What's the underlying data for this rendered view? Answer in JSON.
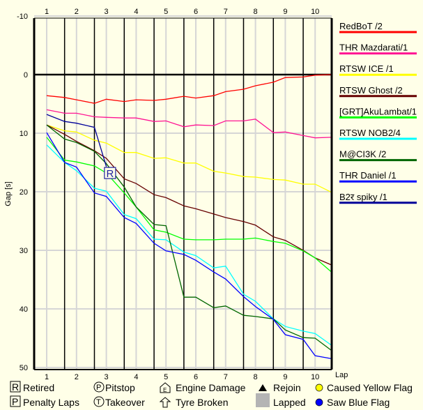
{
  "chart_data": {
    "type": "line",
    "title": "",
    "xlabel": "Lap",
    "ylabel": "Gap [s]",
    "xlim": [
      0.55,
      10.55
    ],
    "ylim": [
      -10,
      50
    ],
    "y_inverted": true,
    "x_ticks": [
      "1",
      "2",
      "3",
      "4",
      "5",
      "6",
      "7",
      "8",
      "9",
      "10"
    ],
    "y_ticks": [
      "-10",
      "0",
      "10",
      "20",
      "30",
      "40",
      "50"
    ],
    "y_tick_values": [
      -10,
      0,
      10,
      20,
      30,
      40,
      50
    ],
    "sector_boundaries": [
      1.6,
      2.6,
      3.6,
      4.6,
      5.6,
      6.6,
      7.6,
      8.6,
      9.6
    ],
    "x": [
      1,
      1.6,
      2,
      2.6,
      3,
      3.6,
      4,
      4.6,
      5,
      5.6,
      6,
      6.6,
      7,
      7.6,
      8,
      8.6,
      9,
      9.6,
      10,
      10.55
    ],
    "grid": true,
    "legend_position": "right",
    "series": [
      {
        "name": "RedBoT /2",
        "color": "#ff0000",
        "values": [
          3.6,
          3.9,
          4.3,
          4.9,
          4.2,
          4.6,
          4.3,
          4.4,
          4.2,
          3.7,
          4.0,
          3.6,
          2.9,
          2.5,
          1.9,
          1.3,
          0.5,
          0.4,
          0.1,
          0.0
        ]
      },
      {
        "name": "THR Mazdarati/1",
        "color": "#ff1493",
        "values": [
          6.0,
          6.6,
          6.6,
          7.2,
          7.3,
          7.4,
          7.4,
          8.0,
          7.9,
          8.9,
          8.6,
          8.7,
          7.9,
          7.9,
          7.6,
          9.9,
          9.8,
          10.4,
          10.8,
          10.7
        ]
      },
      {
        "name": "RTSW ICE /1",
        "color": "#ffff00",
        "values": [
          8.6,
          9.6,
          9.8,
          11.2,
          11.7,
          13.3,
          13.3,
          14.3,
          14.2,
          15.1,
          15.1,
          16.5,
          16.8,
          17.4,
          17.5,
          17.9,
          18.0,
          18.7,
          18.7,
          20.1
        ]
      },
      {
        "name": "RTSW Ghost /2",
        "color": "#660000",
        "values": [
          8.6,
          10.2,
          11.4,
          13.0,
          14.3,
          17.8,
          18.6,
          20.5,
          21.0,
          22.4,
          22.9,
          23.8,
          24.4,
          25.1,
          25.7,
          27.7,
          28.3,
          30.0,
          31.3,
          32.5
        ]
      },
      {
        "name": "[GRT]AkuLambat/1",
        "color": "#00ff00",
        "values": [
          10.7,
          14.6,
          14.9,
          15.6,
          16.8,
          20.2,
          22.6,
          26.5,
          26.9,
          28.1,
          28.2,
          28.2,
          28.1,
          28.1,
          27.9,
          28.5,
          28.8,
          30.1,
          31.3,
          33.7
        ]
      },
      {
        "name": "RTSW NOB2/4",
        "color": "#00ffff",
        "values": [
          12.0,
          15.0,
          16.4,
          19.4,
          19.9,
          23.9,
          24.6,
          28.1,
          28.2,
          30.3,
          30.9,
          33.0,
          32.7,
          37.5,
          38.7,
          41.7,
          43.0,
          43.8,
          44.2,
          46.2
        ]
      },
      {
        "name": "M@CI3K /2",
        "color": "#006600",
        "values": [
          8.6,
          11.0,
          11.6,
          13.1,
          15.2,
          19.2,
          22.6,
          25.6,
          25.8,
          38.0,
          38.0,
          39.8,
          39.5,
          41.1,
          41.3,
          41.7,
          43.6,
          44.9,
          45.0,
          47.1
        ]
      },
      {
        "name": "THR Daniel /1",
        "color": "#0000ff",
        "values": [
          9.9,
          15.0,
          15.8,
          20.2,
          20.8,
          24.4,
          25.4,
          28.8,
          30.1,
          30.7,
          31.7,
          33.7,
          34.9,
          37.9,
          39.6,
          41.8,
          44.4,
          45.2,
          48.0,
          48.5
        ]
      },
      {
        "name": "B2र spiky /1",
        "color": "#000099",
        "values": [
          6.8,
          8.0,
          8.3,
          9.0,
          15.7,
          null,
          null,
          null,
          null,
          null,
          null,
          null,
          null,
          null,
          null,
          null,
          null,
          null,
          null,
          null
        ]
      }
    ],
    "annotations": [
      {
        "text": "R",
        "meaning": "Retired",
        "series": "B2र spiky /1",
        "lap": 3.1,
        "gap": 16.8
      }
    ]
  },
  "legend_bottom": {
    "retired": {
      "symbol": "R",
      "label": "Retired"
    },
    "penalty": {
      "symbol": "P",
      "label": "Penalty Laps"
    },
    "pitstop": {
      "symbol": "P",
      "label": "Pitstop"
    },
    "takeover": {
      "symbol": "T",
      "label": "Takeover"
    },
    "engine": {
      "symbol": "E",
      "label": "Engine Damage"
    },
    "tyre": {
      "label": "Tyre Broken"
    },
    "rejoin": {
      "label": "Rejoin"
    },
    "lapped": {
      "label": "Lapped"
    },
    "yellow": {
      "label": "Caused Yellow Flag",
      "color": "#ffff00"
    },
    "blue": {
      "label": "Saw Blue Flag",
      "color": "#0000ff"
    }
  }
}
